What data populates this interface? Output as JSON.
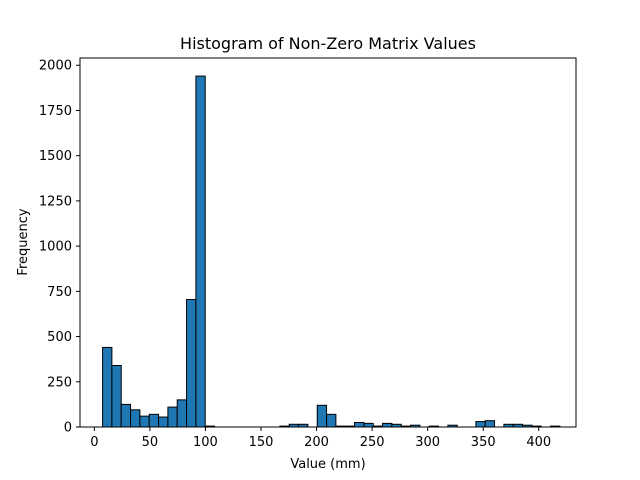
{
  "chart_data": {
    "type": "bar",
    "title": "Histogram of Non-Zero Matrix Values",
    "xlabel": "Value (mm)",
    "ylabel": "Frequency",
    "xlim": [
      -12.9,
      433.5
    ],
    "ylim": [
      0,
      2040
    ],
    "x_ticks": [
      0,
      50,
      100,
      150,
      200,
      250,
      300,
      350,
      400
    ],
    "y_ticks": [
      0,
      250,
      500,
      750,
      1000,
      1250,
      1500,
      1750,
      2000
    ],
    "bin_start": 7.4,
    "bin_width": 8.4,
    "values": [
      440,
      340,
      125,
      95,
      60,
      70,
      55,
      110,
      150,
      705,
      1940,
      5,
      0,
      0,
      0,
      0,
      0,
      0,
      0,
      5,
      15,
      15,
      0,
      120,
      70,
      5,
      5,
      25,
      20,
      5,
      20,
      15,
      5,
      10,
      0,
      5,
      0,
      10,
      0,
      0,
      30,
      35,
      0,
      15,
      15,
      10,
      5,
      0,
      5
    ],
    "bar_color": "#1f77b4",
    "edge_color": "#000000",
    "grid": false
  }
}
